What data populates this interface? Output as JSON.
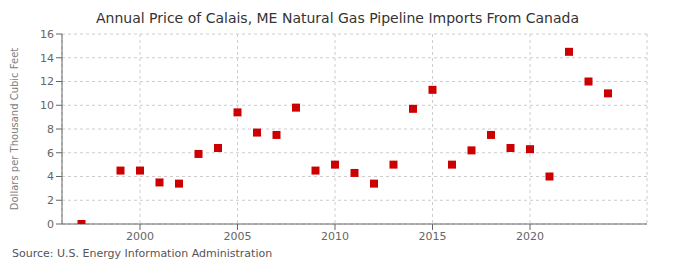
{
  "chart_data": {
    "type": "scatter",
    "title": "Annual Price of Calais, ME Natural Gas Pipeline Imports From Canada",
    "ylabel": "Dollars per Thousand Cubic Feet",
    "source": "Source: U.S. Energy Information Administration",
    "x": [
      1997,
      1999,
      2000,
      2001,
      2002,
      2003,
      2004,
      2005,
      2006,
      2007,
      2008,
      2009,
      2010,
      2011,
      2012,
      2013,
      2014,
      2015,
      2016,
      2017,
      2018,
      2019,
      2020,
      2021,
      2022,
      2023,
      2024
    ],
    "values": [
      0.0,
      4.5,
      4.5,
      3.5,
      3.4,
      5.9,
      6.4,
      9.4,
      7.7,
      7.5,
      9.8,
      4.5,
      5.0,
      4.3,
      3.4,
      5.0,
      9.7,
      11.3,
      5.0,
      6.2,
      7.5,
      6.4,
      6.3,
      4.0,
      14.5,
      12.0,
      11.0
    ],
    "color": "#cc0000",
    "marker": "square",
    "xlim": [
      1996,
      2026
    ],
    "xticks": [
      2000,
      2005,
      2010,
      2015,
      2020
    ],
    "ylim": [
      0,
      16
    ],
    "yticks": [
      0,
      2,
      4,
      6,
      8,
      10,
      12,
      14,
      16
    ],
    "grid": true
  }
}
